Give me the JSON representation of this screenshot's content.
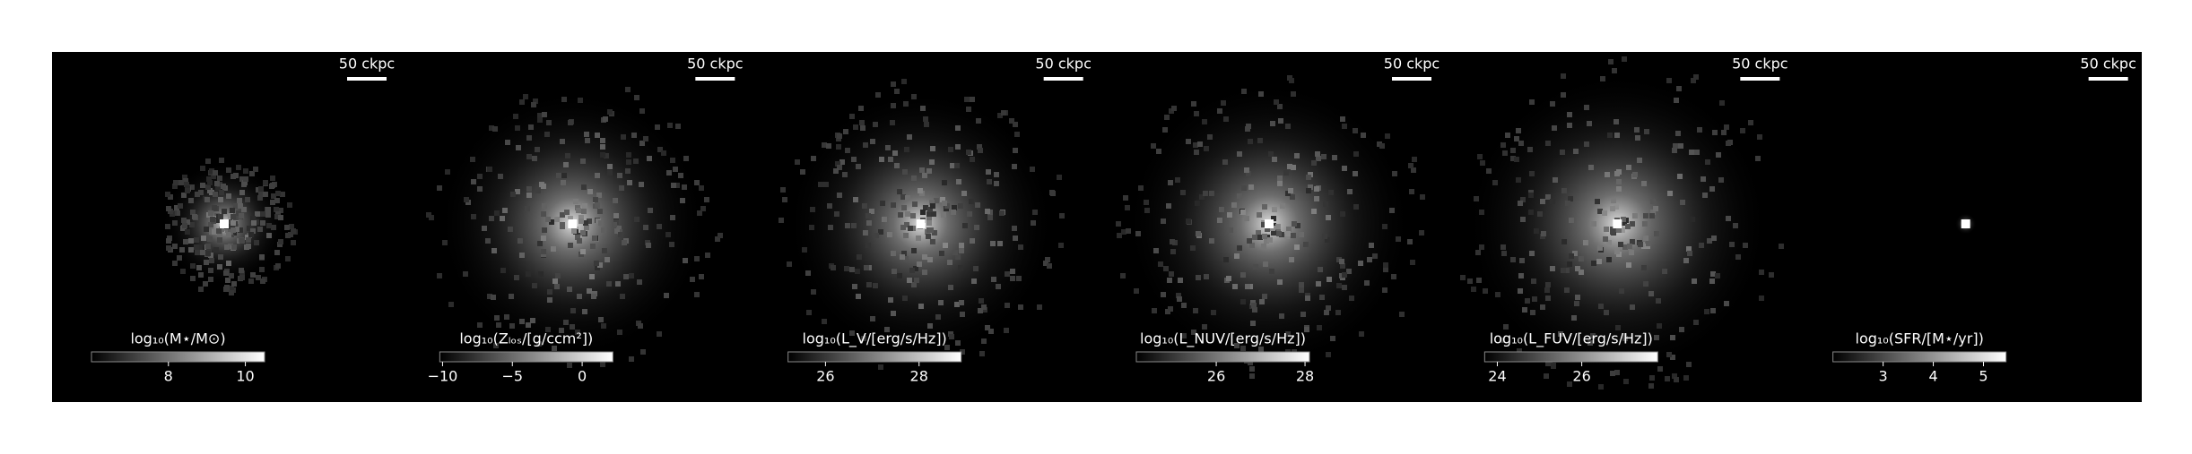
{
  "panels": [
    {
      "scale_label": "50 ckpc",
      "colorbar": {
        "label": "log₁₀(M⋆/M⊙)",
        "lim": [
          6,
          10.5
        ],
        "ticks": [
          8,
          10
        ]
      }
    },
    {
      "scale_label": "50 ckpc",
      "colorbar": {
        "label": "log₁₀(Zₗₒₛ/[g/ccm²])",
        "lim": [
          -10.2,
          2.2
        ],
        "ticks": [
          {
            "value": -10,
            "label": "−10"
          },
          {
            "value": -5,
            "label": "−5"
          },
          0
        ]
      }
    },
    {
      "scale_label": "50 ckpc",
      "colorbar": {
        "label": "log₁₀(L_V/[erg/s/Hz])",
        "lim": [
          25.2,
          28.9
        ],
        "ticks": [
          26,
          28
        ]
      }
    },
    {
      "scale_label": "50 ckpc",
      "colorbar": {
        "label": "log₁₀(L_NUV/[erg/s/Hz])",
        "lim": [
          24.2,
          28.1
        ],
        "ticks": [
          26,
          28
        ]
      }
    },
    {
      "scale_label": "50 ckpc",
      "colorbar": {
        "label": "log₁₀(L_FUV/[erg/s/Hz])",
        "lim": [
          23.7,
          27.8
        ],
        "ticks": [
          24,
          26
        ]
      }
    },
    {
      "scale_label": "50 ckpc",
      "colorbar": {
        "label": "log₁₀(SFR/[M⋆/yr])",
        "lim": [
          2,
          5.45
        ],
        "ticks": [
          3,
          4,
          5
        ]
      }
    }
  ]
}
